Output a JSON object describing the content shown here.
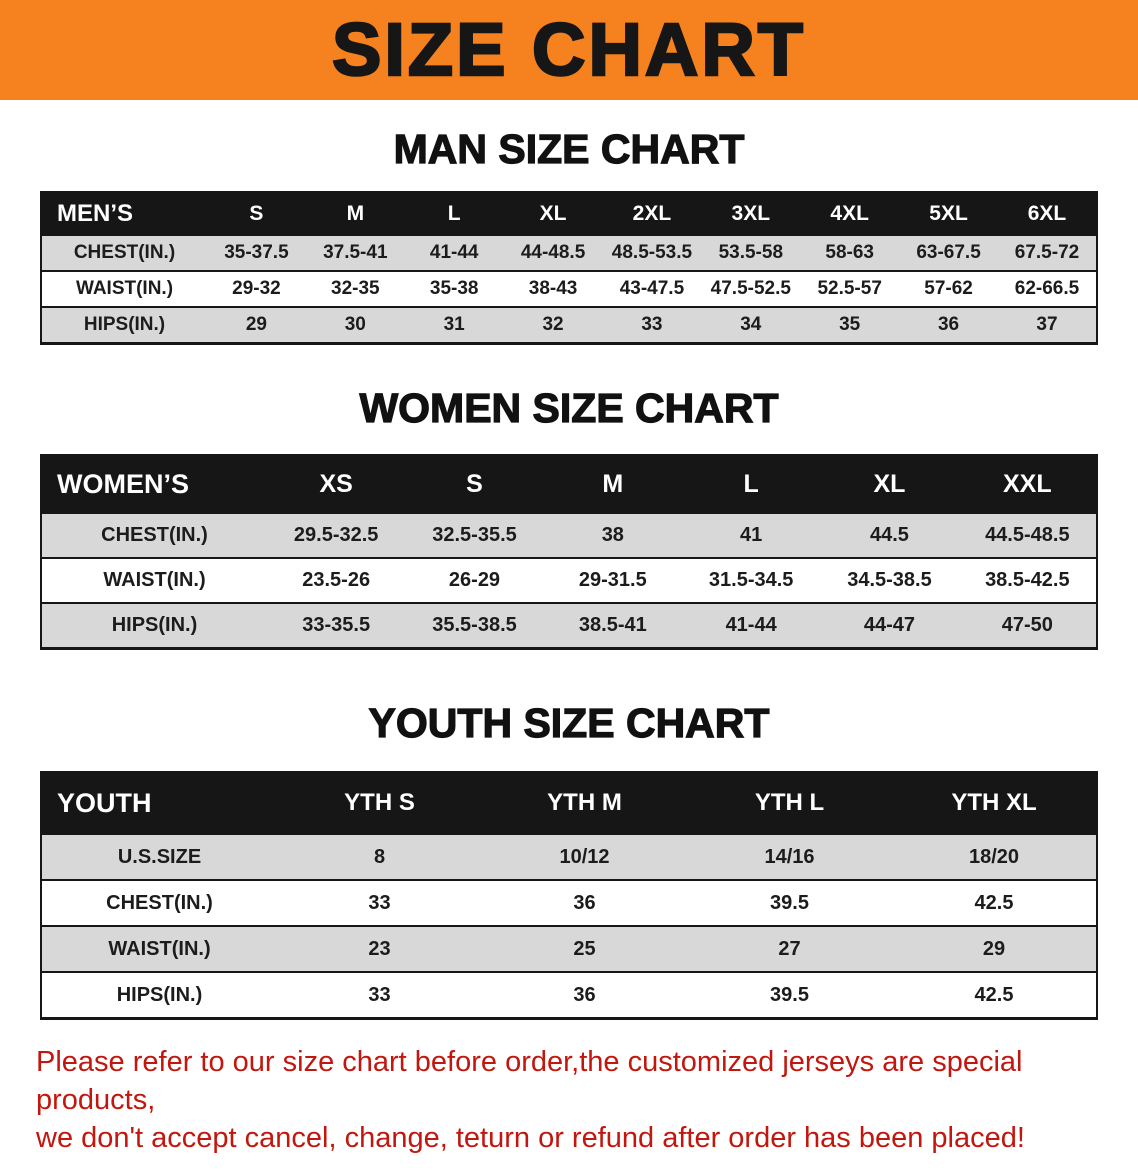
{
  "banner": {
    "title": "SIZE CHART"
  },
  "sections": [
    {
      "id": "men",
      "heading": "MAN SIZE CHART",
      "table": {
        "header": [
          "MEN’S",
          "S",
          "M",
          "L",
          "XL",
          "2XL",
          "3XL",
          "4XL",
          "5XL",
          "6XL"
        ],
        "rows": [
          [
            "CHEST(IN.)",
            "35-37.5",
            "37.5-41",
            "41-44",
            "44-48.5",
            "48.5-53.5",
            "53.5-58",
            "58-63",
            "63-67.5",
            "67.5-72"
          ],
          [
            "WAIST(IN.)",
            "29-32",
            "32-35",
            "35-38",
            "38-43",
            "43-47.5",
            "47.5-52.5",
            "52.5-57",
            "57-62",
            "62-66.5"
          ],
          [
            "HIPS(IN.)",
            "29",
            "30",
            "31",
            "32",
            "33",
            "34",
            "35",
            "36",
            "37"
          ]
        ]
      }
    },
    {
      "id": "women",
      "heading": "WOMEN SIZE CHART",
      "table": {
        "header": [
          "WOMEN’S",
          "XS",
          "S",
          "M",
          "L",
          "XL",
          "XXL"
        ],
        "rows": [
          [
            "CHEST(IN.)",
            "29.5-32.5",
            "32.5-35.5",
            "38",
            "41",
            "44.5",
            "44.5-48.5"
          ],
          [
            "WAIST(IN.)",
            "23.5-26",
            "26-29",
            "29-31.5",
            "31.5-34.5",
            "34.5-38.5",
            "38.5-42.5"
          ],
          [
            "HIPS(IN.)",
            "33-35.5",
            "35.5-38.5",
            "38.5-41",
            "41-44",
            "44-47",
            "47-50"
          ]
        ]
      }
    },
    {
      "id": "youth",
      "heading": "YOUTH SIZE CHART",
      "table": {
        "header": [
          "YOUTH",
          "YTH S",
          "YTH M",
          "YTH L",
          "YTH XL"
        ],
        "rows": [
          [
            "U.S.SIZE",
            "8",
            "10/12",
            "14/16",
            "18/20"
          ],
          [
            "CHEST(IN.)",
            "33",
            "36",
            "39.5",
            "42.5"
          ],
          [
            "WAIST(IN.)",
            "23",
            "25",
            "27",
            "29"
          ],
          [
            "HIPS(IN.)",
            "33",
            "36",
            "39.5",
            "42.5"
          ]
        ]
      }
    }
  ],
  "disclaimer": {
    "line1": "Please refer to our size chart before order,the customized jerseys are special products,",
    "line2": "we don't accept cancel, change, teturn or refund after order has been placed!"
  },
  "colors": {
    "banner_bg": "#F5821E",
    "header_bg": "#161616",
    "row_shade": "#D8D8D8",
    "disclaimer_text": "#C2170E"
  }
}
